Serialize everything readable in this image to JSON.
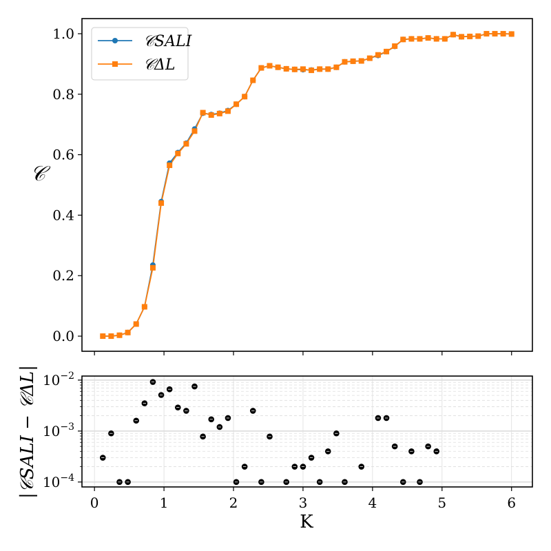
{
  "chart_data": [
    {
      "type": "line",
      "xlabel": "",
      "ylabel": "𝒞",
      "ylim": [
        -0.05,
        1.05
      ],
      "xlim": [
        -0.18,
        6.3
      ],
      "yticks": [
        "0.0",
        "0.2",
        "0.4",
        "0.6",
        "0.8",
        "1.0"
      ],
      "grid": false,
      "legend": "upper-left",
      "x": [
        0.12,
        0.24,
        0.36,
        0.48,
        0.6,
        0.72,
        0.84,
        0.96,
        1.08,
        1.2,
        1.32,
        1.44,
        1.56,
        1.68,
        1.8,
        1.92,
        2.04,
        2.16,
        2.28,
        2.4,
        2.52,
        2.64,
        2.76,
        2.88,
        3.0,
        3.12,
        3.24,
        3.36,
        3.48,
        3.6,
        3.72,
        3.84,
        3.96,
        4.08,
        4.2,
        4.32,
        4.44,
        4.56,
        4.68,
        4.8,
        4.92,
        5.04,
        5.16,
        5.28,
        5.4,
        5.52,
        5.64,
        5.76,
        5.88,
        6.0
      ],
      "series": [
        {
          "name": "𝒞SALI",
          "color": "#1f77b4",
          "marker": "circle",
          "values": [
            0.0,
            0.0,
            0.003,
            0.012,
            0.04,
            0.097,
            0.235,
            0.445,
            0.572,
            0.607,
            0.638,
            0.685,
            0.737,
            0.733,
            0.737,
            0.746,
            0.767,
            0.792,
            0.846,
            0.887,
            0.894,
            0.889,
            0.884,
            0.882,
            0.881,
            0.88,
            0.883,
            0.883,
            0.889,
            0.907,
            0.909,
            0.91,
            0.919,
            0.928,
            0.941,
            0.958,
            0.981,
            0.983,
            0.983,
            0.986,
            0.983,
            0.983,
            0.997,
            0.99,
            0.991,
            0.992,
            1.0,
            1.0,
            1.0,
            0.999
          ]
        },
        {
          "name": "𝒞ΔL",
          "color": "#ff7f0e",
          "marker": "square",
          "values": [
            0.0,
            0.0,
            0.003,
            0.012,
            0.04,
            0.097,
            0.226,
            0.44,
            0.565,
            0.604,
            0.636,
            0.678,
            0.739,
            0.731,
            0.736,
            0.744,
            0.767,
            0.792,
            0.846,
            0.887,
            0.894,
            0.889,
            0.884,
            0.882,
            0.883,
            0.879,
            0.883,
            0.883,
            0.889,
            0.907,
            0.909,
            0.91,
            0.919,
            0.93,
            0.941,
            0.959,
            0.981,
            0.983,
            0.983,
            0.986,
            0.983,
            0.983,
            0.997,
            0.99,
            0.991,
            0.992,
            1.0,
            1.0,
            1.0,
            0.999
          ]
        }
      ]
    },
    {
      "type": "scatter",
      "xlabel": "K",
      "ylabel": "|𝒞SALI − 𝒞ΔL|",
      "yscale": "log",
      "ylim": [
        8e-05,
        0.012
      ],
      "xlim": [
        -0.18,
        6.3
      ],
      "xticks": [
        "0",
        "1",
        "2",
        "3",
        "4",
        "5",
        "6"
      ],
      "yticks": [
        "10−4",
        "10−3",
        "10−2"
      ],
      "grid": true,
      "color": "#000000",
      "x": [
        0.12,
        0.24,
        0.36,
        0.48,
        0.6,
        0.72,
        0.84,
        0.96,
        1.08,
        1.2,
        1.32,
        1.44,
        1.56,
        1.68,
        1.8,
        1.92,
        2.04,
        2.16,
        2.28,
        2.4,
        2.52,
        2.76,
        2.88,
        3.0,
        3.12,
        3.24,
        3.36,
        3.48,
        3.6,
        3.84,
        4.08,
        4.2,
        4.32,
        4.44,
        4.56,
        4.68,
        4.8,
        4.92
      ],
      "values": [
        0.0003,
        0.0009,
        0.0001,
        0.0001,
        0.0016,
        0.0035,
        0.0092,
        0.0051,
        0.0066,
        0.0029,
        0.0025,
        0.0075,
        0.00078,
        0.0017,
        0.0012,
        0.0018,
        0.0001,
        0.0002,
        0.0025,
        0.0001,
        0.00078,
        0.0001,
        0.0002,
        0.0002,
        0.0003,
        0.0001,
        0.0004,
        0.0009,
        0.0001,
        0.0002,
        0.0018,
        0.0018,
        0.0005,
        0.0001,
        0.0004,
        0.0001,
        0.0005,
        0.0004
      ]
    }
  ]
}
